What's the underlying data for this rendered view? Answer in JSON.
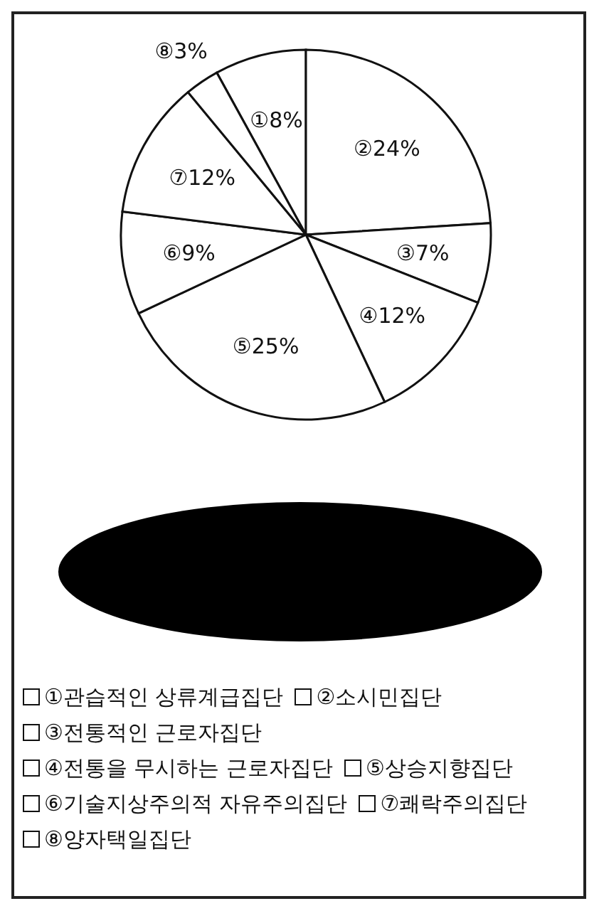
{
  "chart_data": {
    "type": "pie",
    "categories": [
      "①관습적인 상류계급집단",
      "②소시민집단",
      "③전통적인 근로자집단",
      "④전통을 무시하는 근로자집단",
      "⑤상승지향집단",
      "⑥기술지상주의적 자유주의집단",
      "⑦쾌락주의집단",
      "⑧양자택일집단"
    ],
    "values": [
      8,
      24,
      7,
      12,
      25,
      9,
      12,
      3
    ],
    "value_labels": [
      "①8%",
      "②24%",
      "③7%",
      "④12%",
      "⑤25%",
      "⑥9%",
      "⑦12%",
      "⑧3%"
    ],
    "colors": [
      "#ffffff",
      "#ffffff",
      "#ffffff",
      "#ffffff",
      "#ffffff",
      "#ffffff",
      "#ffffff",
      "#ffffff"
    ],
    "legend": "bottom"
  }
}
